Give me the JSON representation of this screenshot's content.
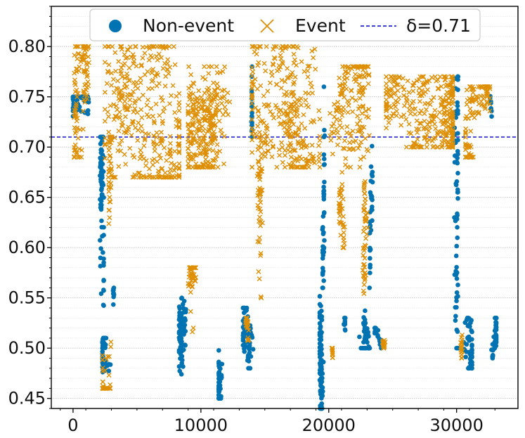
{
  "chart_data": {
    "type": "scatter",
    "title": "",
    "xlabel": "",
    "ylabel": "",
    "xlim": [
      -1700,
      34800
    ],
    "ylim": [
      0.44,
      0.84
    ],
    "xticks": [
      0,
      10000,
      20000,
      30000
    ],
    "xtick_labels": [
      "0",
      "10000",
      "20000",
      "30000"
    ],
    "yticks": [
      0.45,
      0.5,
      0.55,
      0.6,
      0.65,
      0.7,
      0.75,
      0.8
    ],
    "ytick_labels": [
      "0.45",
      "0.50",
      "0.55",
      "0.60",
      "0.65",
      "0.70",
      "0.75",
      "0.80"
    ],
    "grid": true,
    "legend_position": "top",
    "colors": {
      "non_event": "#0173b2",
      "event": "#de8f05",
      "threshold": "#0000cc"
    },
    "threshold": {
      "label": "δ=0.71",
      "value": 0.71,
      "style": "dashed"
    },
    "series": [
      {
        "name": "Non-event",
        "marker": "circle",
        "color": "#0173b2",
        "clusters": [
          {
            "x_range": [
              0,
              1400
            ],
            "y_range": [
              0.72,
              0.75
            ],
            "n": 60
          },
          {
            "x_range": [
              1900,
              2400
            ],
            "y_range": [
              0.48,
              0.71
            ],
            "n": 90
          },
          {
            "x_range": [
              2300,
              3100
            ],
            "y_range": [
              0.47,
              0.51
            ],
            "n": 40
          },
          {
            "x_range": [
              3100,
              3300
            ],
            "y_range": [
              0.53,
              0.56
            ],
            "n": 10
          },
          {
            "x_range": [
              8300,
              9400
            ],
            "y_range": [
              0.46,
              0.55
            ],
            "n": 80
          },
          {
            "x_range": [
              11400,
              12000
            ],
            "y_range": [
              0.45,
              0.53
            ],
            "n": 40
          },
          {
            "x_range": [
              13300,
              14300
            ],
            "y_range": [
              0.48,
              0.54
            ],
            "n": 70
          },
          {
            "x_range": [
              13800,
              14000
            ],
            "y_range": [
              0.71,
              0.78
            ],
            "n": 20
          },
          {
            "x_range": [
              19300,
              20000
            ],
            "y_range": [
              0.44,
              0.56
            ],
            "n": 90
          },
          {
            "x_range": [
              19500,
              19800
            ],
            "y_range": [
              0.56,
              0.78
            ],
            "n": 40
          },
          {
            "x_range": [
              21000,
              21300
            ],
            "y_range": [
              0.5,
              0.53
            ],
            "n": 10
          },
          {
            "x_range": [
              22400,
              23200
            ],
            "y_range": [
              0.5,
              0.55
            ],
            "n": 40
          },
          {
            "x_range": [
              23100,
              23500
            ],
            "y_range": [
              0.56,
              0.72
            ],
            "n": 30
          },
          {
            "x_range": [
              23600,
              24400
            ],
            "y_range": [
              0.5,
              0.52
            ],
            "n": 20
          },
          {
            "x_range": [
              29700,
              30100
            ],
            "y_range": [
              0.5,
              0.77
            ],
            "n": 80
          },
          {
            "x_range": [
              30100,
              31200
            ],
            "y_range": [
              0.48,
              0.53
            ],
            "n": 60
          },
          {
            "x_range": [
              32600,
              33100
            ],
            "y_range": [
              0.49,
              0.53
            ],
            "n": 40
          },
          {
            "x_range": [
              32600,
              32900
            ],
            "y_range": [
              0.73,
              0.76
            ],
            "n": 10
          }
        ]
      },
      {
        "name": "Event",
        "marker": "x",
        "color": "#de8f05",
        "clusters": [
          {
            "x_range": [
              100,
              1600
            ],
            "y_range": [
              0.69,
              0.8
            ],
            "n": 110
          },
          {
            "x_range": [
              2300,
              3100
            ],
            "y_range": [
              0.46,
              0.52
            ],
            "n": 30
          },
          {
            "x_range": [
              2800,
              3300
            ],
            "y_range": [
              0.52,
              0.71
            ],
            "n": 40
          },
          {
            "x_range": [
              2500,
              8300
            ],
            "y_range": [
              0.67,
              0.8
            ],
            "n": 340
          },
          {
            "x_range": [
              8300,
              9600
            ],
            "y_range": [
              0.49,
              0.58
            ],
            "n": 40
          },
          {
            "x_range": [
              9000,
              13800
            ],
            "y_range": [
              0.68,
              0.78
            ],
            "n": 270
          },
          {
            "x_range": [
              13500,
              14200
            ],
            "y_range": [
              0.5,
              0.53
            ],
            "n": 20
          },
          {
            "x_range": [
              14200,
              15200
            ],
            "y_range": [
              0.55,
              0.71
            ],
            "n": 50
          },
          {
            "x_range": [
              14000,
              19300
            ],
            "y_range": [
              0.68,
              0.8
            ],
            "n": 300
          },
          {
            "x_range": [
              20100,
              23600
            ],
            "y_range": [
              0.68,
              0.78
            ],
            "n": 160
          },
          {
            "x_range": [
              20800,
              21500
            ],
            "y_range": [
              0.6,
              0.69
            ],
            "n": 40
          },
          {
            "x_range": [
              22600,
              23300
            ],
            "y_range": [
              0.55,
              0.68
            ],
            "n": 50
          },
          {
            "x_range": [
              20000,
              20300
            ],
            "y_range": [
              0.48,
              0.5
            ],
            "n": 10
          },
          {
            "x_range": [
              24000,
              24500
            ],
            "y_range": [
              0.5,
              0.52
            ],
            "n": 15
          },
          {
            "x_range": [
              24500,
              29700
            ],
            "y_range": [
              0.7,
              0.77
            ],
            "n": 320
          },
          {
            "x_range": [
              30300,
              30700
            ],
            "y_range": [
              0.49,
              0.52
            ],
            "n": 15
          },
          {
            "x_range": [
              30700,
              32600
            ],
            "y_range": [
              0.69,
              0.76
            ],
            "n": 110
          }
        ]
      }
    ]
  }
}
